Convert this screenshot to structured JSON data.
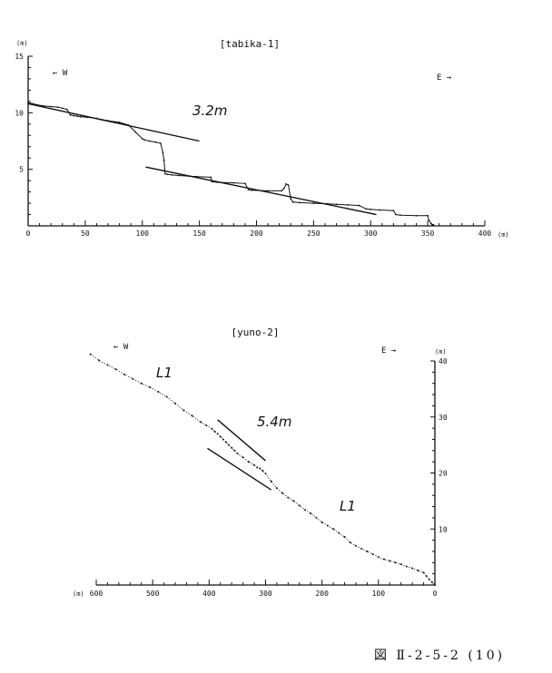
{
  "figure_caption": "図 Ⅱ-2-5-2 (10)",
  "chart_data": [
    {
      "type": "line",
      "title": "[tabika-1]",
      "ylabel": "(m)",
      "xlabel": "(m)",
      "xlim": [
        0,
        400
      ],
      "ylim": [
        0,
        15
      ],
      "x_ticks": [
        0,
        50,
        100,
        150,
        200,
        250,
        300,
        350,
        400
      ],
      "y_ticks": [
        5,
        10,
        15
      ],
      "x_tick_labels": [
        "0",
        "50",
        "100",
        "150",
        "200",
        "250",
        "300",
        "350",
        "400"
      ],
      "y_tick_labels": [
        "5",
        "10",
        "15"
      ],
      "direction_west": "← W",
      "direction_east": "E →",
      "annotation": "3.2m",
      "series": [
        {
          "x": [
            0,
            4,
            8,
            14,
            20,
            26,
            30,
            34,
            37,
            40,
            43,
            46,
            52,
            60,
            70,
            80,
            88,
            94,
            100,
            102,
            106,
            112,
            116,
            118,
            119,
            120,
            122,
            126,
            132,
            140,
            148,
            160,
            161,
            166,
            180,
            190,
            193,
            196,
            210,
            222,
            224,
            226,
            228,
            230,
            232,
            238,
            250,
            262,
            270,
            280,
            290,
            296,
            300,
            308,
            320,
            322,
            326,
            340,
            350,
            351,
            353,
            354,
            355
          ],
          "y": [
            10.9,
            10.8,
            10.7,
            10.6,
            10.55,
            10.5,
            10.4,
            10.3,
            9.8,
            9.75,
            9.7,
            9.65,
            9.6,
            9.5,
            9.3,
            9.15,
            8.9,
            8.3,
            7.7,
            7.6,
            7.5,
            7.4,
            7.3,
            6.5,
            5.8,
            4.6,
            4.55,
            4.5,
            4.45,
            4.4,
            4.35,
            4.3,
            3.9,
            3.85,
            3.8,
            3.75,
            3.2,
            3.15,
            3.1,
            3.1,
            3.3,
            3.7,
            3.6,
            2.4,
            2.1,
            2.05,
            2.0,
            1.95,
            1.9,
            1.85,
            1.8,
            1.5,
            1.45,
            1.4,
            1.35,
            1.0,
            0.95,
            0.9,
            0.9,
            0.5,
            0.2,
            0.1,
            0.1
          ]
        }
      ],
      "trend_lines": [
        {
          "x": [
            0,
            150
          ],
          "y": [
            10.8,
            7.5
          ]
        },
        {
          "x": [
            103,
            305
          ],
          "y": [
            5.2,
            1.0
          ]
        }
      ]
    },
    {
      "type": "line",
      "title": "[yuno-2]",
      "ylabel": "(m)",
      "xlabel": "(m)",
      "x_reversed": true,
      "xlim": [
        0,
        600
      ],
      "ylim": [
        0,
        40
      ],
      "x_ticks": [
        0,
        100,
        200,
        300,
        400,
        500,
        600
      ],
      "y_ticks": [
        10,
        20,
        30,
        40
      ],
      "x_tick_labels": [
        "0",
        "100",
        "200",
        "300",
        "400",
        "500",
        "600"
      ],
      "y_tick_labels": [
        "10",
        "20",
        "30",
        "40"
      ],
      "direction_west": "← W",
      "direction_east": "E →",
      "annotation": "5.4m",
      "segment_label_upper": "L1",
      "segment_label_lower": "L1",
      "series": [
        {
          "x": [
            610,
            595,
            580,
            565,
            550,
            535,
            520,
            505,
            490,
            475,
            460,
            445,
            430,
            415,
            405,
            395,
            390,
            385,
            380,
            375,
            370,
            365,
            360,
            355,
            350,
            340,
            330,
            320,
            315,
            310,
            305,
            300,
            290,
            280,
            270,
            260,
            250,
            240,
            230,
            220,
            210,
            200,
            190,
            180,
            170,
            160,
            150,
            140,
            130,
            120,
            110,
            100,
            90,
            80,
            70,
            60,
            50,
            40,
            30,
            20,
            15,
            10,
            5,
            0
          ],
          "y": [
            41.2,
            40.1,
            39.3,
            38.5,
            37.6,
            36.8,
            36.0,
            35.3,
            34.5,
            33.6,
            32.4,
            31.2,
            30.2,
            29.1,
            28.5,
            27.9,
            27.4,
            27.0,
            26.5,
            26.0,
            25.5,
            25.0,
            24.5,
            24.0,
            23.5,
            22.8,
            22.0,
            21.4,
            21.0,
            20.8,
            20.4,
            19.9,
            18.5,
            17.3,
            16.4,
            15.6,
            15.0,
            14.2,
            13.4,
            12.8,
            12.0,
            11.2,
            10.6,
            10.0,
            9.3,
            8.6,
            7.6,
            7.0,
            6.5,
            6.0,
            5.5,
            5.0,
            4.6,
            4.3,
            4.0,
            3.7,
            3.3,
            3.0,
            2.6,
            2.2,
            1.6,
            1.0,
            0.5,
            0.0
          ]
        }
      ],
      "trend_lines": [
        {
          "x": [
            385,
            300
          ],
          "y": [
            29.5,
            22.2
          ]
        },
        {
          "x": [
            403,
            290
          ],
          "y": [
            24.4,
            17.0
          ]
        }
      ]
    }
  ]
}
